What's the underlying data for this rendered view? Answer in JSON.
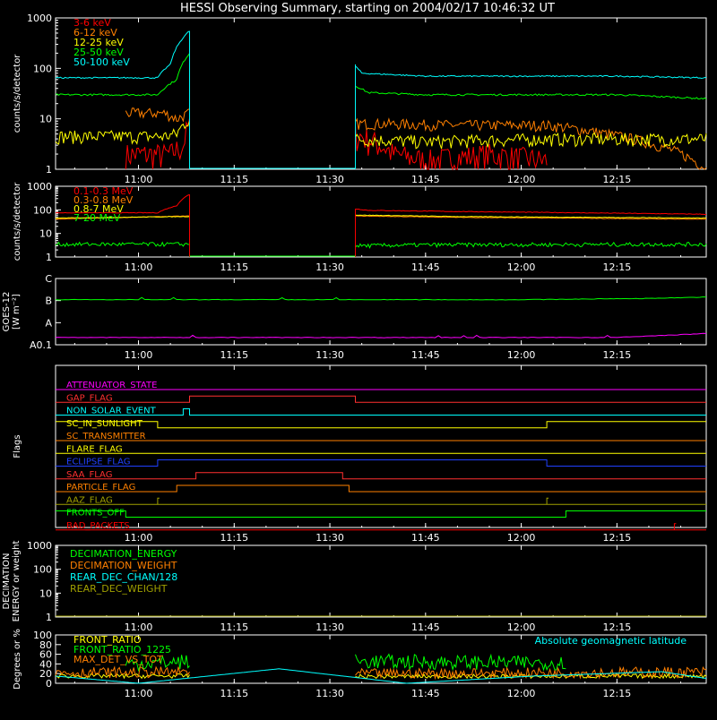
{
  "title": "HESSI Observing Summary, starting on 2004/02/17 10:46:32 UT",
  "chart_data": [
    {
      "id": "panel1",
      "type": "line",
      "ylabel": "counts/s/detector",
      "yscale": "log",
      "ylim": [
        1,
        1000
      ],
      "yticks": [
        "1",
        "10",
        "100",
        "1000"
      ],
      "xticks": [
        "11:00",
        "11:15",
        "11:30",
        "11:45",
        "12:00",
        "12:15"
      ],
      "legend_position": "top-left",
      "series": [
        {
          "name": "3-6 keV",
          "color": "#ff0000",
          "x": [
            "10:58",
            "11:04",
            "11:05",
            "11:07",
            "11:08",
            "11:34",
            "11:40",
            "11:45",
            "11:55",
            "12:04"
          ],
          "y": [
            2,
            2,
            2,
            3,
            8,
            5,
            2,
            1.5,
            2,
            1.5
          ]
        },
        {
          "name": "6-12 keV",
          "color": "#ff8000",
          "x": [
            "10:58",
            "11:04",
            "11:06",
            "11:08",
            "11:34",
            "11:38",
            "11:50",
            "12:04",
            "12:29"
          ],
          "y": [
            13,
            13,
            10,
            13,
            8,
            8,
            7.5,
            7.5,
            1
          ]
        },
        {
          "name": "12-25 keV",
          "color": "#ffff00",
          "x": [
            "10:47",
            "11:04",
            "11:06",
            "11:08",
            "11:34",
            "11:45",
            "12:04",
            "12:29"
          ],
          "y": [
            4.5,
            4.5,
            5,
            10,
            4,
            3.5,
            4,
            4
          ]
        },
        {
          "name": "25-50 keV",
          "color": "#00ff00",
          "x": [
            "10:47",
            "11:03",
            "11:06",
            "11:08",
            "11:34",
            "11:36",
            "11:45",
            "12:15",
            "12:29"
          ],
          "y": [
            30,
            30,
            60,
            200,
            45,
            33,
            30,
            30,
            25
          ]
        },
        {
          "name": "50-100 keV",
          "color": "#00ffff",
          "x": [
            "10:47",
            "11:03",
            "11:05",
            "11:08",
            "11:34",
            "11:35",
            "11:45",
            "12:15",
            "12:29"
          ],
          "y": [
            65,
            65,
            120,
            550,
            110,
            80,
            70,
            70,
            65
          ]
        }
      ]
    },
    {
      "id": "panel2",
      "type": "line",
      "ylabel": "counts/s/detector",
      "yscale": "log",
      "ylim": [
        1,
        1000
      ],
      "yticks": [
        "1",
        "10",
        "100",
        "1000"
      ],
      "xticks": [
        "11:00",
        "11:15",
        "11:30",
        "11:45",
        "12:00",
        "12:15"
      ],
      "legend_position": "top-left",
      "series": [
        {
          "name": "0.1-0.3 MeV",
          "color": "#ff0000",
          "x": [
            "10:47",
            "11:03",
            "11:06",
            "11:08",
            "11:34",
            "11:36",
            "11:50",
            "12:29"
          ],
          "y": [
            75,
            75,
            150,
            450,
            110,
            95,
            85,
            65
          ]
        },
        {
          "name": "0.3-0.8 MeV",
          "color": "#ff8000",
          "x": [
            "10:47",
            "11:08",
            "11:34",
            "11:50",
            "12:29"
          ],
          "y": [
            40,
            55,
            55,
            48,
            40
          ]
        },
        {
          "name": "0.8-7 MeV",
          "color": "#ffff00",
          "x": [
            "10:47",
            "11:08",
            "11:34",
            "11:50",
            "12:29"
          ],
          "y": [
            45,
            52,
            60,
            52,
            45
          ]
        },
        {
          "name": "7-20 MeV",
          "color": "#00ff00",
          "x": [
            "10:47",
            "11:08",
            "11:34",
            "11:45",
            "12:29"
          ],
          "y": [
            3.5,
            3.5,
            3,
            3.3,
            3.5
          ]
        }
      ]
    },
    {
      "id": "panel3",
      "type": "line",
      "ylabel": "GOES-12 [W m⁻²]",
      "yticks": [
        "A0.1",
        "A",
        "B",
        "C"
      ],
      "xticks": [
        "11:00",
        "11:15",
        "11:30",
        "11:45",
        "12:00",
        "12:15"
      ],
      "series": [
        {
          "color": "#00ff00",
          "x": [
            "10:47",
            "12:00",
            "12:20",
            "12:29"
          ],
          "y": [
            0.68,
            0.68,
            0.7,
            0.72
          ]
        },
        {
          "color": "#ff00ff",
          "x": [
            "10:47",
            "12:15",
            "12:22",
            "12:29"
          ],
          "y": [
            0.11,
            0.11,
            0.14,
            0.17
          ]
        }
      ]
    },
    {
      "id": "flags",
      "type": "line",
      "ylabel": "Flags",
      "xticks": [
        "11:00",
        "11:15",
        "11:30",
        "11:45",
        "12:00",
        "12:15"
      ],
      "series": [
        {
          "name": "ATTENUATOR_STATE",
          "color": "#ff00ff",
          "transitions": []
        },
        {
          "name": "GAP_FLAG",
          "color": "#ff3030",
          "transitions": [
            [
              "11:08",
              1
            ],
            [
              "11:34",
              0
            ]
          ]
        },
        {
          "name": "NON_SOLAR_EVENT",
          "color": "#00ffff",
          "transitions": [
            [
              "11:07",
              1
            ],
            [
              "11:08",
              0
            ]
          ]
        },
        {
          "name": "SC_IN_SUNLIGHT",
          "color": "#ffff00",
          "transitions": [
            [
              "10:47",
              1
            ],
            [
              "11:03",
              0
            ],
            [
              "12:04",
              1
            ]
          ]
        },
        {
          "name": "SC_TRANSMITTER",
          "color": "#ff8000",
          "transitions": []
        },
        {
          "name": "FLARE_FLAG",
          "color": "#ffff00",
          "transitions": []
        },
        {
          "name": "ECLIPSE_FLAG",
          "color": "#2040ff",
          "transitions": [
            [
              "11:03",
              1
            ],
            [
              "12:04",
              0
            ]
          ]
        },
        {
          "name": "SAA_FLAG",
          "color": "#ff3030",
          "transitions": [
            [
              "11:09",
              1
            ],
            [
              "11:32",
              0
            ]
          ]
        },
        {
          "name": "PARTICLE_FLAG",
          "color": "#ff8000",
          "transitions": [
            [
              "11:06",
              1
            ],
            [
              "11:33",
              0
            ]
          ]
        },
        {
          "name": "AAZ_FLAG",
          "color": "#a0a000",
          "transitions": [
            [
              "11:03",
              1
            ],
            [
              "11:03",
              0
            ],
            [
              "12:04",
              1
            ],
            [
              "12:04",
              0
            ]
          ]
        },
        {
          "name": "FRONTS_OFF",
          "color": "#00ff00",
          "transitions": [
            [
              "10:58",
              0
            ],
            [
              "12:07",
              1
            ]
          ]
        },
        {
          "name": "BAD_PACKETS",
          "color": "#ff0000",
          "transitions": [
            [
              "12:24",
              1
            ],
            [
              "12:24",
              0
            ]
          ]
        }
      ]
    },
    {
      "id": "decimation",
      "type": "line",
      "ylabel": "DECIMATION ENERGY or weight",
      "yscale": "log",
      "ylim": [
        1,
        1000
      ],
      "yticks": [
        "1",
        "10",
        "100",
        "1000"
      ],
      "xticks": [
        "11:00",
        "11:15",
        "11:30",
        "11:45",
        "12:00",
        "12:15"
      ],
      "series": [
        {
          "name": "DECIMATION_ENERGY",
          "color": "#00ff00"
        },
        {
          "name": "DECIMATION_WEIGHT",
          "color": "#ff8000"
        },
        {
          "name": "REAR_DEC_CHAN/128",
          "color": "#00ffff"
        },
        {
          "name": "REAR_DEC_WEIGHT",
          "color": "#a0a000",
          "x": [
            "10:47",
            "12:29"
          ],
          "y": [
            1,
            1
          ]
        }
      ]
    },
    {
      "id": "ratio",
      "type": "line",
      "ylabel": "Degrees or %",
      "ylim": [
        0,
        100
      ],
      "yticks": [
        "0",
        "20",
        "40",
        "60",
        "80",
        "100"
      ],
      "xticks": [
        "11:00",
        "11:15",
        "11:30",
        "11:45",
        "12:00",
        "12:15"
      ],
      "annotation": "Absolute geomagnetic latitude",
      "series": [
        {
          "name": "FRONT_RATIO",
          "color": "#ffff00",
          "x": [
            "10:47",
            "11:08",
            "11:34",
            "12:29"
          ],
          "y": [
            15,
            15,
            14,
            15
          ]
        },
        {
          "name": "FRONT_RATIO_1225",
          "color": "#00ff00",
          "x": [
            "10:58",
            "11:08",
            "11:34",
            "12:07"
          ],
          "y": [
            40,
            45,
            45,
            42
          ]
        },
        {
          "name": "MAX_DET_VS_TOT",
          "color": "#ff8000",
          "x": [
            "10:47",
            "11:08",
            "11:34",
            "12:29"
          ],
          "y": [
            22,
            23,
            20,
            23
          ]
        },
        {
          "color": "#00ffff",
          "x": [
            "10:47",
            "11:00",
            "11:22",
            "11:42",
            "12:02",
            "12:22",
            "12:29"
          ],
          "y": [
            15,
            0,
            30,
            0,
            15,
            24,
            10
          ]
        }
      ]
    }
  ]
}
